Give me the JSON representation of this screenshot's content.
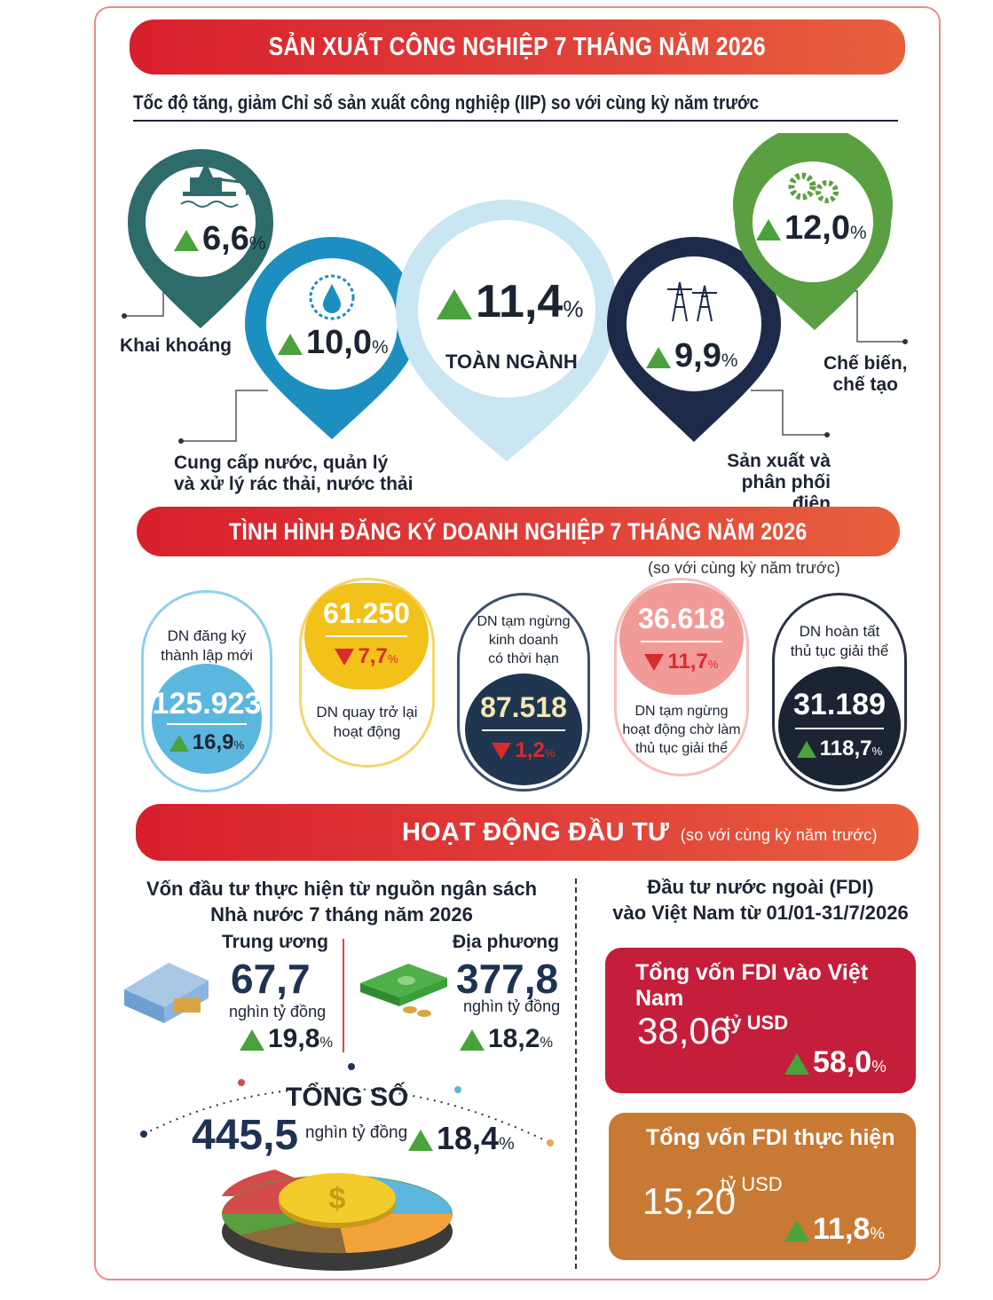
{
  "industry": {
    "title": "SẢN XUẤT CÔNG NGHIỆP 7 THÁNG NĂM 2026",
    "subtitle": "Tốc độ tăng, giảm Chỉ số sản xuất công nghiệp (IIP) so với cùng kỳ năm trước",
    "items": [
      {
        "label": "Khai khoáng",
        "value": "6,6",
        "unit": "%",
        "icon": "oil-rig-icon",
        "color": "#2e6b6b"
      },
      {
        "label": "Cung cấp nước, quản lý và xử lý rác thải, nước thải",
        "value": "10,0",
        "unit": "%",
        "icon": "water-drop-icon",
        "color": "#1c8fc0"
      },
      {
        "label": "TOÀN NGÀNH",
        "value": "11,4",
        "unit": "%",
        "icon": "",
        "color": "#c9e6f2"
      },
      {
        "label": "Sản xuất và phân phối điện",
        "value": "9,9",
        "unit": "%",
        "icon": "power-tower-icon",
        "color": "#1e2a4a"
      },
      {
        "label": "Chế biến, chế tạo",
        "value": "12,0",
        "unit": "%",
        "icon": "gears-icon",
        "color": "#5aa043"
      }
    ],
    "label_lines": {
      "water_1": "Cung cấp nước, quản lý",
      "water_2": "và xử lý rác thải, nước thải",
      "power_1": "Sản xuất và",
      "power_2": "phân phối điện",
      "manu_1": "Chế biến,",
      "manu_2": "chế tạo"
    }
  },
  "registration": {
    "title": "TÌNH HÌNH ĐĂNG KÝ DOANH NGHIỆP 7 THÁNG NĂM 2026",
    "note": "(so với cùng kỳ năm trước)",
    "cards": [
      {
        "lines": [
          "DN đăng ký",
          "thành lập mới"
        ],
        "value": "125.923",
        "change": "16,9",
        "unit": "%",
        "direction": "up",
        "color": "#5cb7df"
      },
      {
        "lines": [
          "DN quay trở lại",
          "hoạt động"
        ],
        "value": "61.250",
        "change": "7,7",
        "unit": "%",
        "direction": "down",
        "color": "#f2c21b"
      },
      {
        "lines": [
          "DN tạm ngừng",
          "kinh doanh",
          "có thời hạn"
        ],
        "value": "87.518",
        "change": "1,2",
        "unit": "%",
        "direction": "down",
        "color": "#1f3550"
      },
      {
        "lines": [
          "DN tạm ngừng",
          "hoạt động chờ làm",
          "thủ tục giải thể"
        ],
        "value": "36.618",
        "change": "11,7",
        "unit": "%",
        "direction": "down",
        "color": "#f09b98"
      },
      {
        "lines": [
          "DN hoàn tất",
          "thủ tục giải thể"
        ],
        "value": "31.189",
        "change": "118,7",
        "unit": "%",
        "direction": "up",
        "color": "#1a2433"
      }
    ]
  },
  "investment": {
    "title": "HOẠT ĐỘNG ĐẦU TƯ",
    "note": "(so với cùng kỳ năm trước)",
    "budget_title_1": "Vốn đầu tư thực hiện từ nguồn ngân sách",
    "budget_title_2": "Nhà nước 7 tháng năm 2026",
    "central": {
      "label": "Trung ương",
      "value": "67,7",
      "unit": "nghìn tỷ đồng",
      "change": "19,8",
      "pct": "%"
    },
    "local": {
      "label": "Địa phương",
      "value": "377,8",
      "unit": "nghìn tỷ đồng",
      "change": "18,2",
      "pct": "%"
    },
    "total": {
      "label": "TỔNG SỐ",
      "value": "445,5",
      "unit": "nghìn tỷ đồng",
      "change": "18,4",
      "pct": "%"
    },
    "fdi_title_1": "Đầu tư nước ngoài (FDI)",
    "fdi_title_2": "vào Việt Nam từ 01/01-31/7/2026",
    "fdi_total": {
      "label": "Tổng vốn FDI vào Việt Nam",
      "value": "38,06",
      "unit": "tỷ USD",
      "change": "58,0",
      "pct": "%",
      "color": "#c41e3a"
    },
    "fdi_realized": {
      "label": "Tổng vốn FDI thực hiện",
      "value": "15,20",
      "unit": "tỷ USD",
      "change": "11,8",
      "pct": "%",
      "color": "#c87a35"
    }
  }
}
